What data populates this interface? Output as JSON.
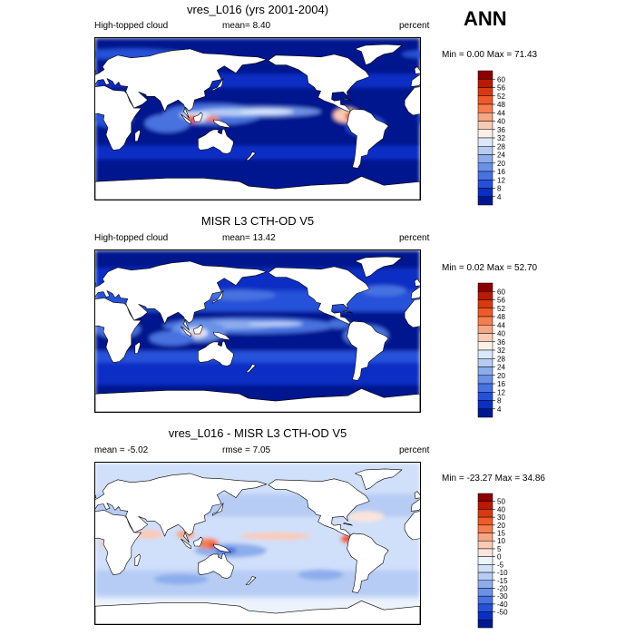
{
  "season": "ANN",
  "panels": [
    {
      "title": "vres_L016 (yrs 2001-2004)",
      "left_label": "High-topped cloud",
      "center_label": "mean=  8.40",
      "right_label": "percent",
      "minmax": "Min =  0.00 Max =  71.43",
      "colorbar_levels": [
        "60",
        "56",
        "52",
        "48",
        "44",
        "40",
        "36",
        "32",
        "28",
        "24",
        "20",
        "16",
        "12",
        "8",
        "4"
      ]
    },
    {
      "title": "MISR L3 CTH-OD V5",
      "left_label": "High-topped cloud",
      "center_label": "mean=  13.42",
      "right_label": "percent",
      "minmax": "Min =  0.02 Max =  52.70",
      "colorbar_levels": [
        "60",
        "56",
        "52",
        "48",
        "44",
        "40",
        "36",
        "32",
        "28",
        "24",
        "20",
        "16",
        "12",
        "8",
        "4"
      ]
    },
    {
      "title": "vres_L016 - MISR L3 CTH-OD V5",
      "left_label": "mean =  -5.02",
      "center_label": "rmse =  7.05",
      "right_label": "percent",
      "minmax": "Min = -23.27 Max =  34.86",
      "colorbar_levels": [
        "50",
        "40",
        "30",
        "20",
        "15",
        "10",
        "5",
        "0",
        "-5",
        "-10",
        "-15",
        "-20",
        "-30",
        "-40",
        "-50"
      ]
    }
  ],
  "chart_data": [
    {
      "type": "heatmap",
      "title": "vres_L016 (yrs 2001-2004)",
      "variable": "High-topped cloud",
      "units": "percent",
      "mean": 8.4,
      "min": 0.0,
      "max": 71.43,
      "contour_levels": [
        4,
        8,
        12,
        16,
        20,
        24,
        28,
        32,
        36,
        40,
        44,
        48,
        52,
        56,
        60
      ]
    },
    {
      "type": "heatmap",
      "title": "MISR L3 CTH-OD V5",
      "variable": "High-topped cloud",
      "units": "percent",
      "mean": 13.42,
      "min": 0.02,
      "max": 52.7,
      "contour_levels": [
        4,
        8,
        12,
        16,
        20,
        24,
        28,
        32,
        36,
        40,
        44,
        48,
        52,
        56,
        60
      ]
    },
    {
      "type": "heatmap",
      "title": "vres_L016 - MISR L3 CTH-OD V5",
      "units": "percent",
      "mean": -5.02,
      "rmse": 7.05,
      "min": -23.27,
      "max": 34.86,
      "contour_levels": [
        -50,
        -40,
        -30,
        -20,
        -15,
        -10,
        -5,
        0,
        5,
        10,
        15,
        20,
        30,
        40,
        50
      ]
    }
  ],
  "colors": {
    "abs_palette": [
      "#8a0000",
      "#b81b00",
      "#d73a12",
      "#ee5a2a",
      "#f47e50",
      "#f6a683",
      "#facbb4",
      "#fdf0e8",
      "#dbe7fb",
      "#b6ccf4",
      "#8cadec",
      "#6a91e6",
      "#4772e0",
      "#2551d9",
      "#0a2fc4",
      "#00188f"
    ],
    "diff_palette": [
      "#8a0000",
      "#b81b00",
      "#d73a12",
      "#ee5a2a",
      "#f47e50",
      "#f6a683",
      "#facbb4",
      "#fbe5da",
      "#edf3fc",
      "#d0dffa",
      "#b6ccf4",
      "#8cadec",
      "#6a91e6",
      "#4772e0",
      "#2551d9",
      "#0a2fc4",
      "#00188f"
    ],
    "land": "#ffffff"
  }
}
